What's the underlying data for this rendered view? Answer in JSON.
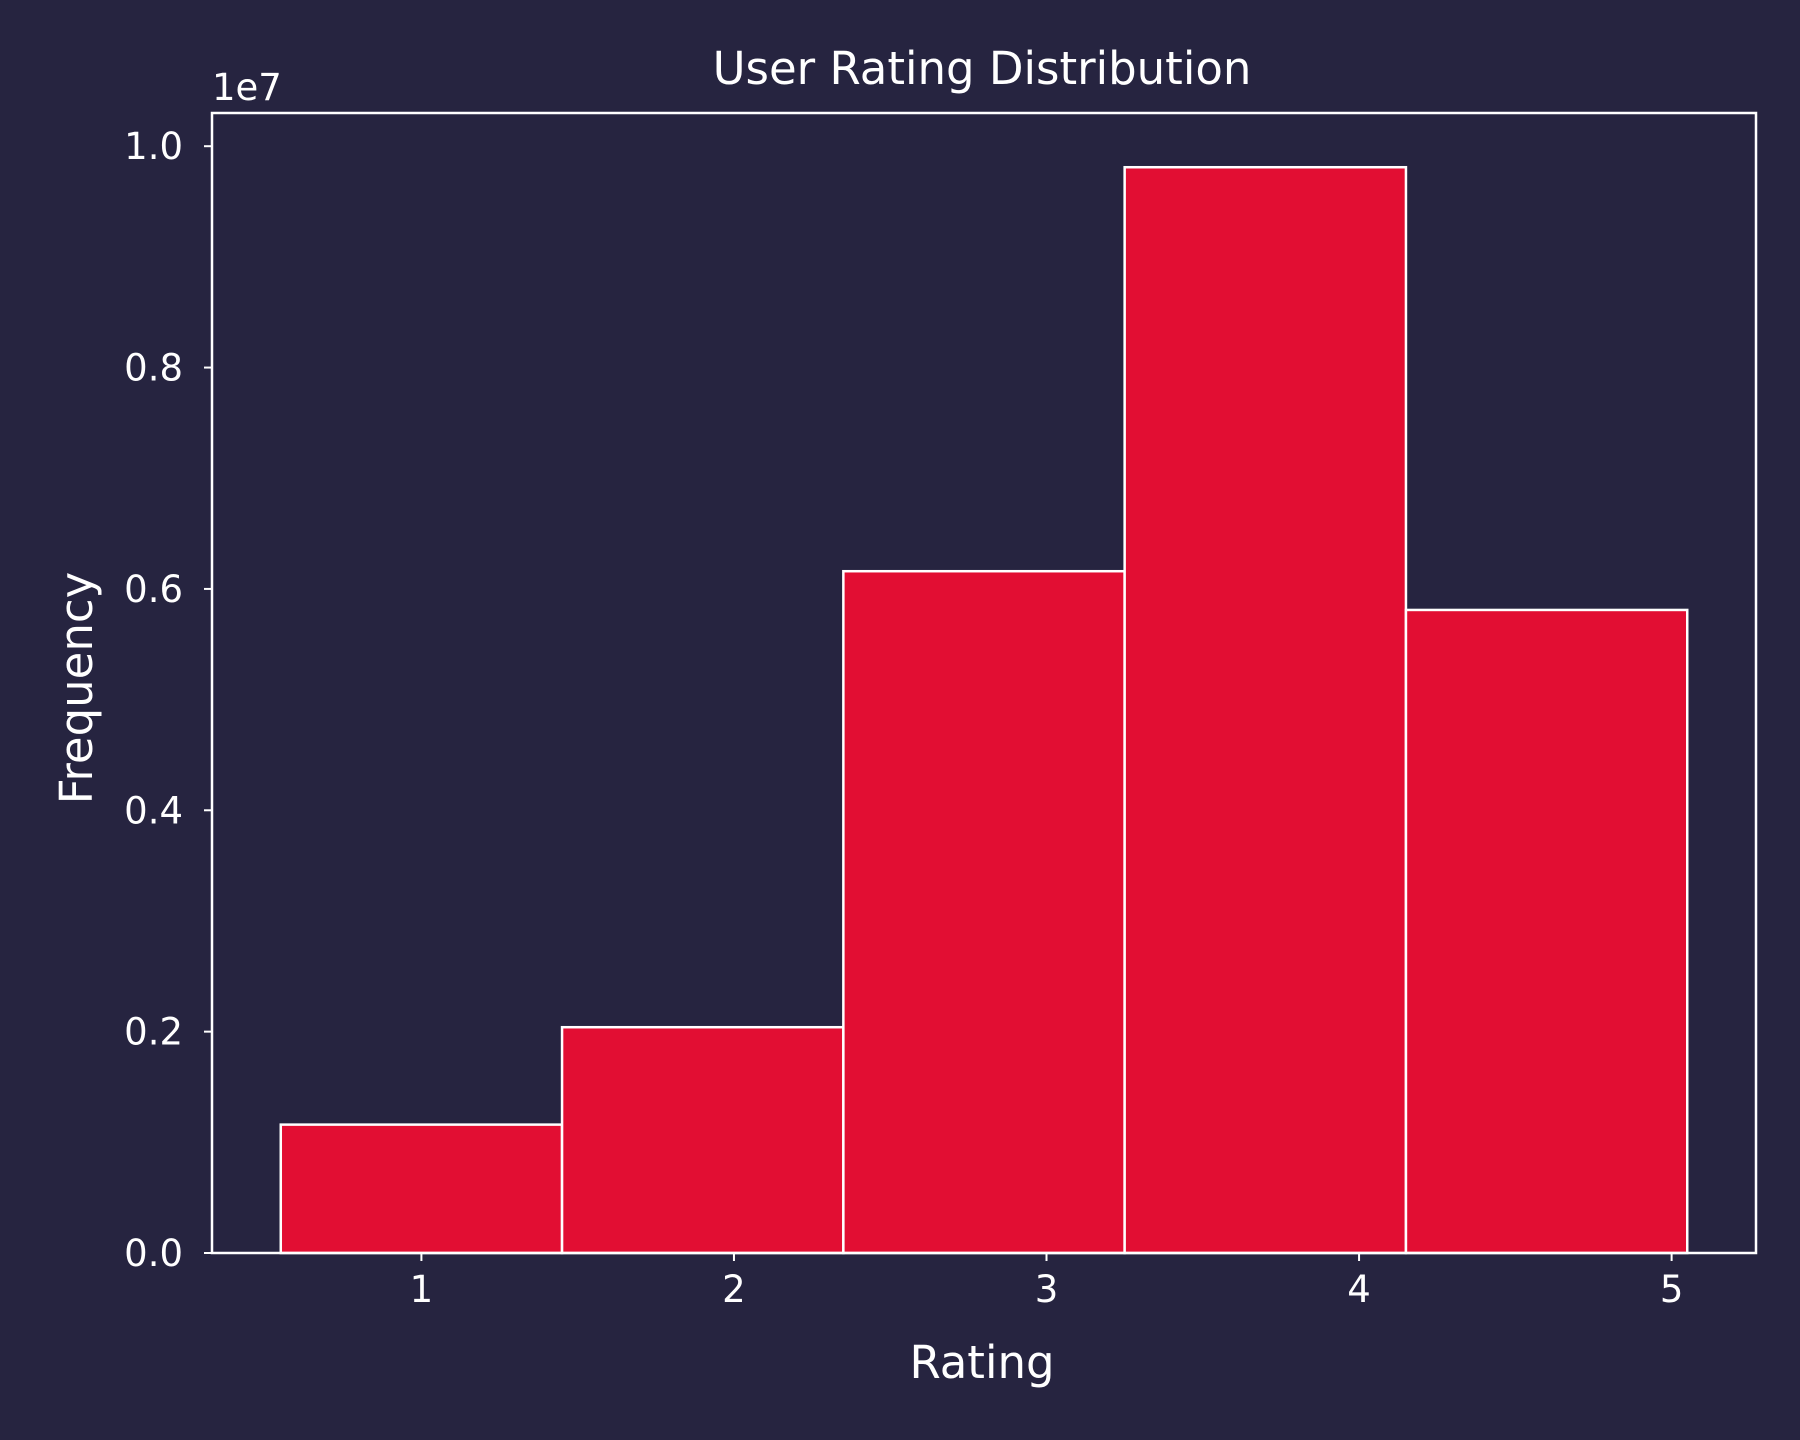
{
  "chart_data": {
    "type": "bar",
    "title": "User Rating Distribution",
    "xlabel": "Rating",
    "ylabel": "Frequency",
    "y_offset_label": "1e7",
    "y_scale": 10000000,
    "bins": [
      {
        "start": 0.55,
        "end": 1.45,
        "value": 1160000
      },
      {
        "start": 1.45,
        "end": 2.35,
        "value": 2040000
      },
      {
        "start": 2.35,
        "end": 3.25,
        "value": 6160000
      },
      {
        "start": 3.25,
        "end": 4.15,
        "value": 9810000
      },
      {
        "start": 4.15,
        "end": 5.05,
        "value": 5810000
      }
    ],
    "xlim": [
      0.33,
      5.27
    ],
    "ylim": [
      0,
      10300000
    ],
    "xticks": [
      1,
      2,
      3,
      4,
      5
    ],
    "xtick_labels": [
      "1",
      "2",
      "3",
      "4",
      "5"
    ],
    "yticks": [
      0,
      2000000,
      4000000,
      6000000,
      8000000,
      10000000
    ],
    "ytick_labels": [
      "0.0",
      "0.2",
      "0.4",
      "0.6",
      "0.8",
      "1.0"
    ],
    "grid": false,
    "colors": {
      "background": "#262440",
      "bar_fill": "#e20e33",
      "bar_edge": "#ffffff",
      "axis": "#ffffff",
      "text": "#ffffff"
    }
  }
}
